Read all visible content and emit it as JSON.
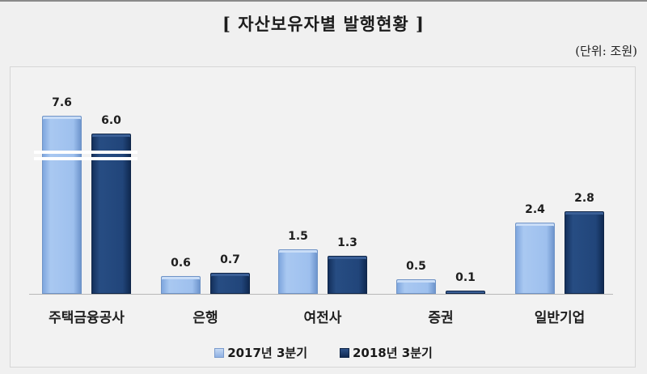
{
  "title": "[ 자산보유자별 발행현황 ]",
  "unit": "(단위: 조원)",
  "colors": {
    "series_2017": "#9ec0ee",
    "series_2018": "#21457a"
  },
  "chart_data": {
    "type": "bar",
    "title": "[ 자산보유자별 발행현황 ]",
    "unit": "(단위: 조원)",
    "xlabel": "",
    "ylabel": "",
    "categories": [
      "주택금융공사",
      "은행",
      "여전사",
      "증권",
      "일반기업"
    ],
    "series": [
      {
        "name": "2017년 3분기",
        "values": [
          7.6,
          0.6,
          1.5,
          0.5,
          2.4
        ]
      },
      {
        "name": "2018년 3분기",
        "values": [
          6.0,
          0.7,
          1.3,
          0.1,
          2.8
        ]
      }
    ],
    "value_labels": [
      [
        "7.6",
        "0.6",
        "1.5",
        "0.5",
        "2.4"
      ],
      [
        "6.0",
        "0.7",
        "1.3",
        "0.1",
        "2.8"
      ]
    ],
    "axis_break": {
      "category": "주택금융공사"
    },
    "grid": false,
    "legend_position": "bottom"
  },
  "legend": [
    {
      "label": "2017년 3분기"
    },
    {
      "label": "2018년 3분기"
    }
  ]
}
